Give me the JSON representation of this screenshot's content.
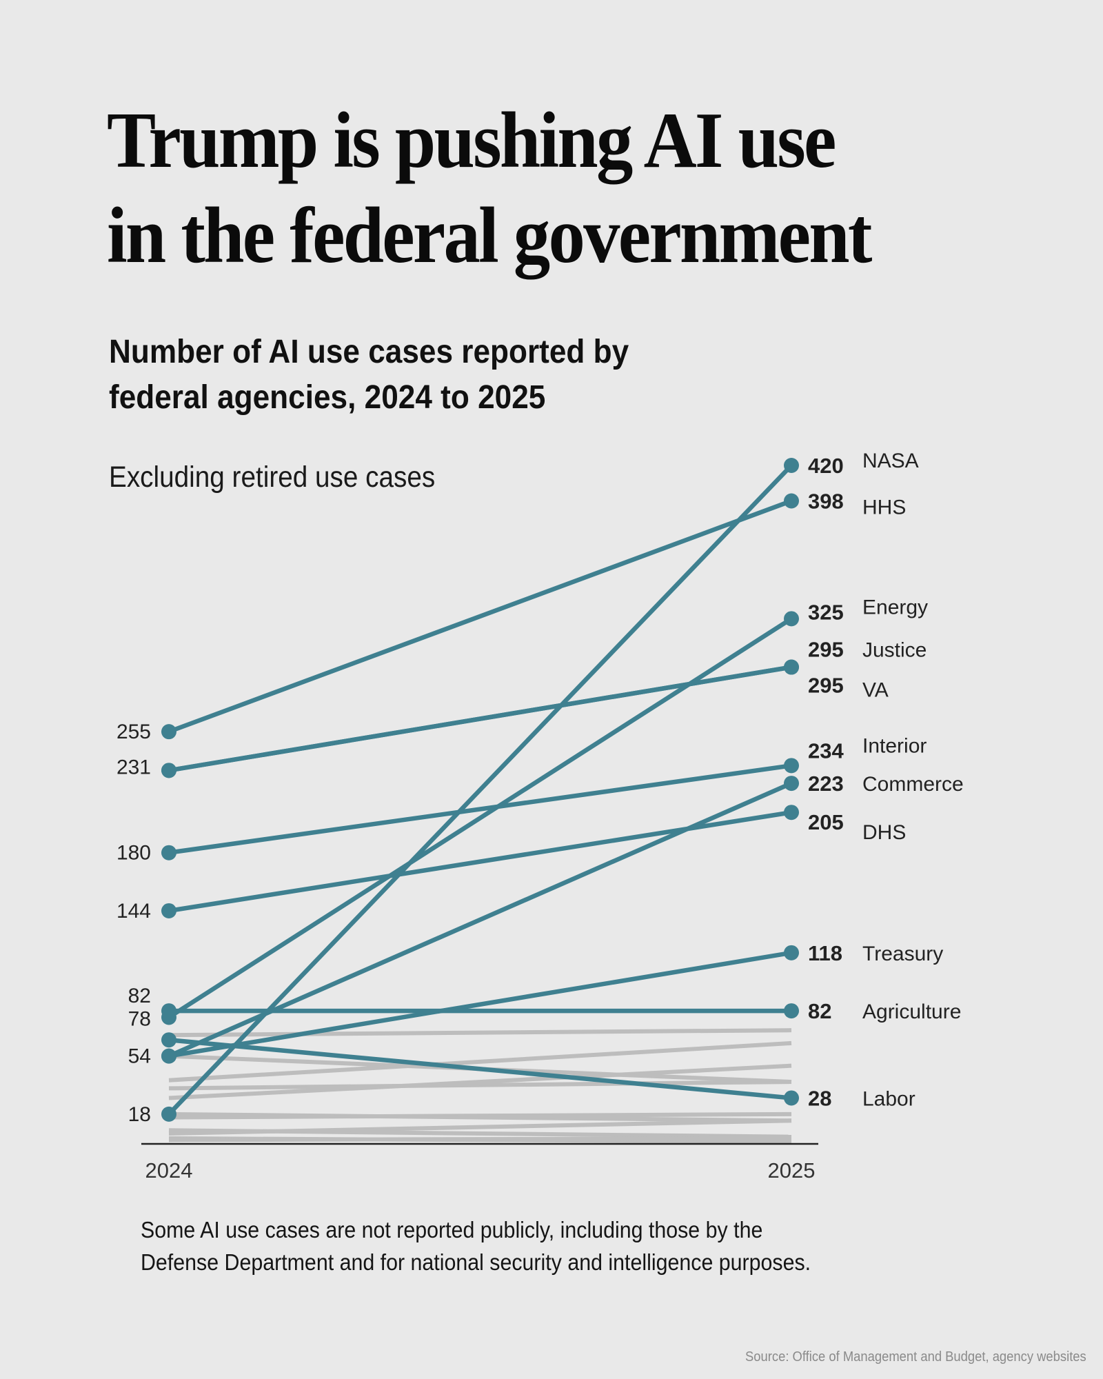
{
  "header": {
    "title_line1": "Trump is pushing AI use",
    "title_line2": "in the federal government",
    "subtitle_line1": "Number of AI use cases reported by",
    "subtitle_line2": "federal agencies, 2024 to 2025",
    "dek": "Excluding retired use cases"
  },
  "footer": {
    "note_line1": "Some AI use cases are not reported publicly, including those by the",
    "note_line2": "Defense Department and for national security and intelligence purposes.",
    "source": "Source: Office of Management and Budget, agency websites"
  },
  "colors": {
    "background": "#e9e9e9",
    "highlight": "#3f8090",
    "other": "#bdbdbd",
    "axis": "#222222"
  },
  "chart_data": {
    "type": "line",
    "subtype": "slope",
    "title": "Number of AI use cases reported by federal agencies, 2024 to 2025",
    "subtitle": "Excluding retired use cases",
    "x": [
      "2024",
      "2025"
    ],
    "ylim": [
      0,
      420
    ],
    "grid": false,
    "left_tick_labels": [
      "255",
      "231",
      "180",
      "144",
      "82",
      "78",
      "54",
      "18"
    ],
    "highlighted_series": [
      {
        "name": "NASA",
        "values": [
          18,
          420
        ]
      },
      {
        "name": "HHS",
        "values": [
          255,
          398
        ]
      },
      {
        "name": "Energy",
        "values": [
          78,
          325
        ]
      },
      {
        "name": "Justice",
        "values": [
          231,
          295
        ]
      },
      {
        "name": "VA",
        "values": [
          231,
          295
        ]
      },
      {
        "name": "Interior",
        "values": [
          180,
          234
        ]
      },
      {
        "name": "Commerce",
        "values": [
          54,
          223
        ]
      },
      {
        "name": "DHS",
        "values": [
          144,
          205
        ]
      },
      {
        "name": "Treasury",
        "values": [
          54,
          118
        ]
      },
      {
        "name": "Agriculture",
        "values": [
          82,
          82
        ]
      },
      {
        "name": "Labor",
        "values": [
          64,
          28
        ]
      }
    ],
    "other_series": [
      {
        "values": [
          67,
          70
        ]
      },
      {
        "values": [
          54,
          38
        ]
      },
      {
        "values": [
          39,
          62
        ]
      },
      {
        "values": [
          34,
          38
        ]
      },
      {
        "values": [
          28,
          48
        ]
      },
      {
        "values": [
          18,
          14
        ]
      },
      {
        "values": [
          16,
          18
        ]
      },
      {
        "values": [
          8,
          4
        ]
      },
      {
        "values": [
          6,
          14
        ]
      },
      {
        "values": [
          3,
          1
        ]
      },
      {
        "values": [
          2,
          3
        ]
      }
    ]
  }
}
